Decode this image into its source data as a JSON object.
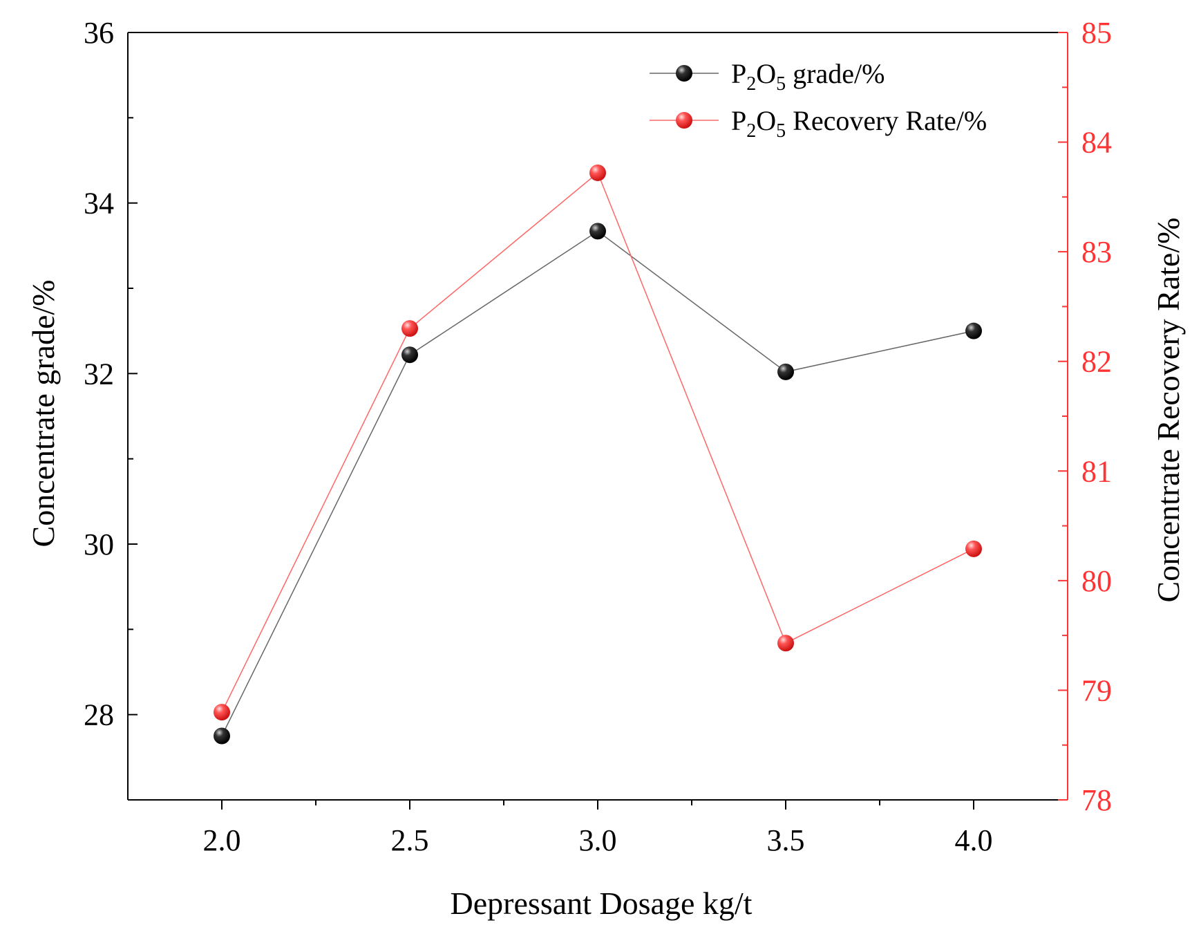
{
  "colors": {
    "grade": "#000000",
    "recovery": "#ff3333",
    "grade_line": "#666666",
    "recovery_line": "#ff6666"
  },
  "chart_data": {
    "type": "line",
    "xlabel": "Depressant Dosage kg/t",
    "ylabel_left": "Concentrate grade/%",
    "ylabel_right": "Concentrate Recovery Rate/%",
    "x": [
      2.0,
      2.5,
      3.0,
      3.5,
      4.0
    ],
    "x_tick_labels": [
      "2.0",
      "2.5",
      "3.0",
      "3.5",
      "4.0"
    ],
    "xlim": [
      1.75,
      4.25
    ],
    "ylim_left": [
      27,
      36
    ],
    "y_left_ticks": [
      "28",
      "30",
      "32",
      "34",
      "36"
    ],
    "ylim_right": [
      78,
      85
    ],
    "y_right_ticks": [
      "78",
      "79",
      "80",
      "81",
      "82",
      "83",
      "84",
      "85"
    ],
    "legend_position": "top-right",
    "series": [
      {
        "name_main": "P",
        "name_sub1": "2",
        "name_mid": "O",
        "name_sub2": "5",
        "name_tail": " grade/%",
        "axis": "left",
        "values": [
          27.75,
          32.22,
          33.67,
          32.02,
          32.5
        ]
      },
      {
        "name_main": "P",
        "name_sub1": "2",
        "name_mid": "O",
        "name_sub2": "5",
        "name_tail": " Recovery Rate/%",
        "axis": "right",
        "values": [
          78.8,
          82.3,
          83.72,
          79.43,
          80.29
        ]
      }
    ]
  }
}
